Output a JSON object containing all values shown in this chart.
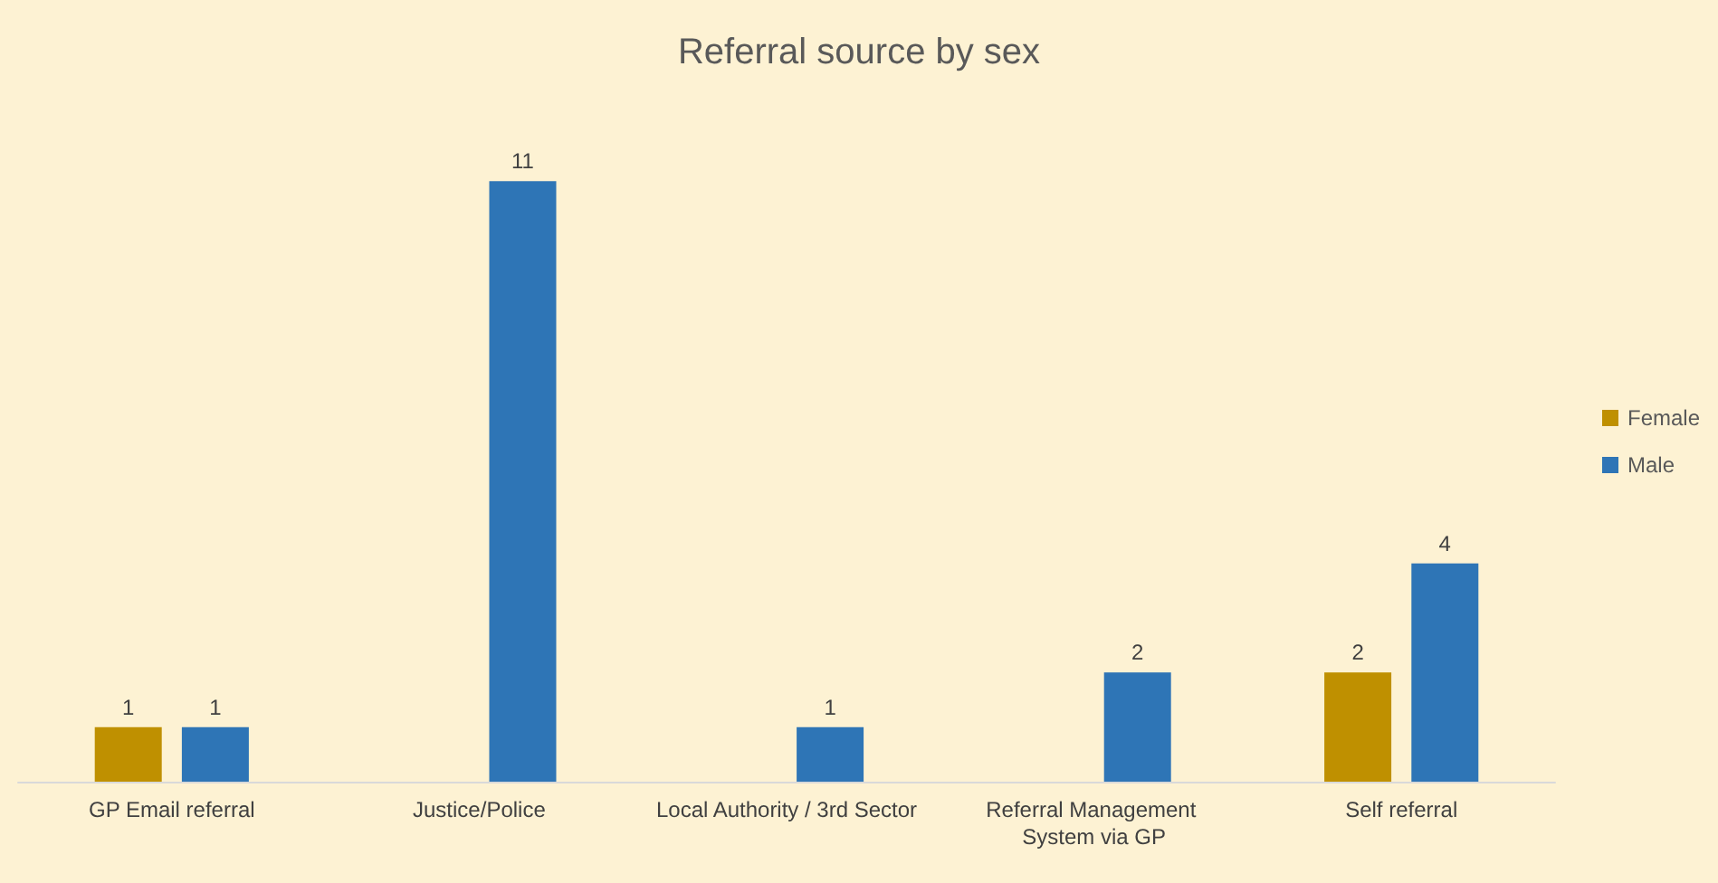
{
  "chart_data": {
    "type": "bar",
    "title": "Referral source by sex",
    "categories": [
      "GP Email referral",
      "Justice/Police",
      "Local Authority / 3rd Sector",
      "Referral Management System via GP",
      "Self referral"
    ],
    "series": [
      {
        "name": "Female",
        "color": "#bf9000",
        "values": [
          1,
          null,
          null,
          null,
          2
        ]
      },
      {
        "name": "Male",
        "color": "#2e75b6",
        "values": [
          1,
          11,
          1,
          2,
          4
        ]
      }
    ],
    "data_labels": true,
    "legend": "right"
  }
}
